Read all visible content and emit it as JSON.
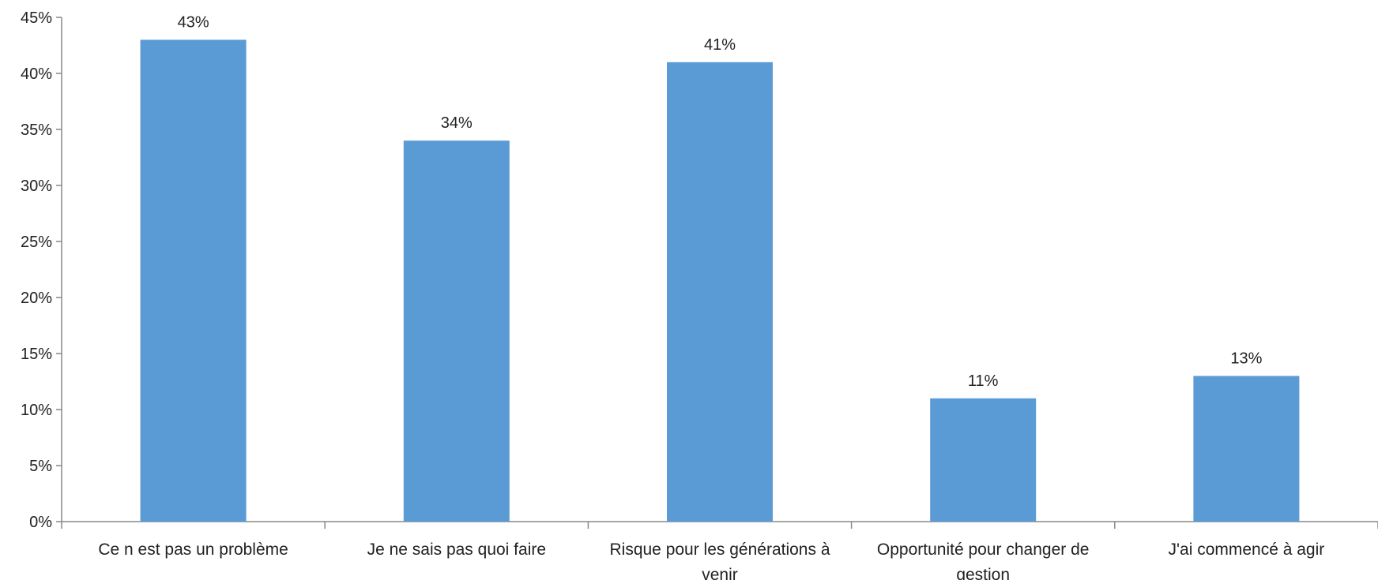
{
  "chart_data": {
    "type": "bar",
    "categories": [
      "Ce n est pas un problème",
      "Je ne sais pas quoi faire",
      "Risque pour les générations à venir",
      "Opportunité pour changer de gestion",
      "J'ai commencé à agir"
    ],
    "values": [
      43,
      34,
      41,
      11,
      13
    ],
    "data_labels": [
      "43%",
      "34%",
      "41%",
      "11%",
      "13%"
    ],
    "title": "",
    "xlabel": "",
    "ylabel": "",
    "ylim": [
      0,
      45
    ],
    "yticks": [
      0,
      5,
      10,
      15,
      20,
      25,
      30,
      35,
      40,
      45
    ],
    "ytick_labels": [
      "0%",
      "5%",
      "10%",
      "15%",
      "20%",
      "25%",
      "30%",
      "35%",
      "40%",
      "45%"
    ],
    "grid": false,
    "legend": "none",
    "bar_color": "#5b9bd5"
  }
}
